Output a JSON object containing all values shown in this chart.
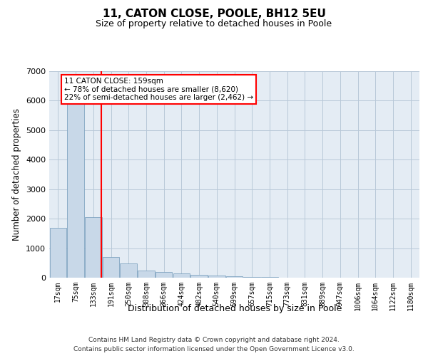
{
  "title": "11, CATON CLOSE, POOLE, BH12 5EU",
  "subtitle": "Size of property relative to detached houses in Poole",
  "xlabel": "Distribution of detached houses by size in Poole",
  "ylabel": "Number of detached properties",
  "bar_color": "#c8d8e8",
  "bar_edge_color": "#7098b8",
  "grid_color": "#b8c8d8",
  "bg_color": "#e4ecf4",
  "categories": [
    "17sqm",
    "75sqm",
    "133sqm",
    "191sqm",
    "250sqm",
    "308sqm",
    "366sqm",
    "424sqm",
    "482sqm",
    "540sqm",
    "599sqm",
    "657sqm",
    "715sqm",
    "773sqm",
    "831sqm",
    "889sqm",
    "947sqm",
    "1006sqm",
    "1064sqm",
    "1122sqm",
    "1180sqm"
  ],
  "values": [
    1700,
    5900,
    2050,
    700,
    490,
    250,
    185,
    140,
    100,
    75,
    50,
    30,
    18,
    10,
    5,
    3,
    2,
    1,
    1,
    0,
    0
  ],
  "annotation_text": "11 CATON CLOSE: 159sqm\n← 78% of detached houses are smaller (8,620)\n22% of semi-detached houses are larger (2,462) →",
  "red_line_x": 2.45,
  "ylim": [
    0,
    7000
  ],
  "yticks": [
    0,
    1000,
    2000,
    3000,
    4000,
    5000,
    6000,
    7000
  ],
  "footer_line1": "Contains HM Land Registry data © Crown copyright and database right 2024.",
  "footer_line2": "Contains public sector information licensed under the Open Government Licence v3.0."
}
